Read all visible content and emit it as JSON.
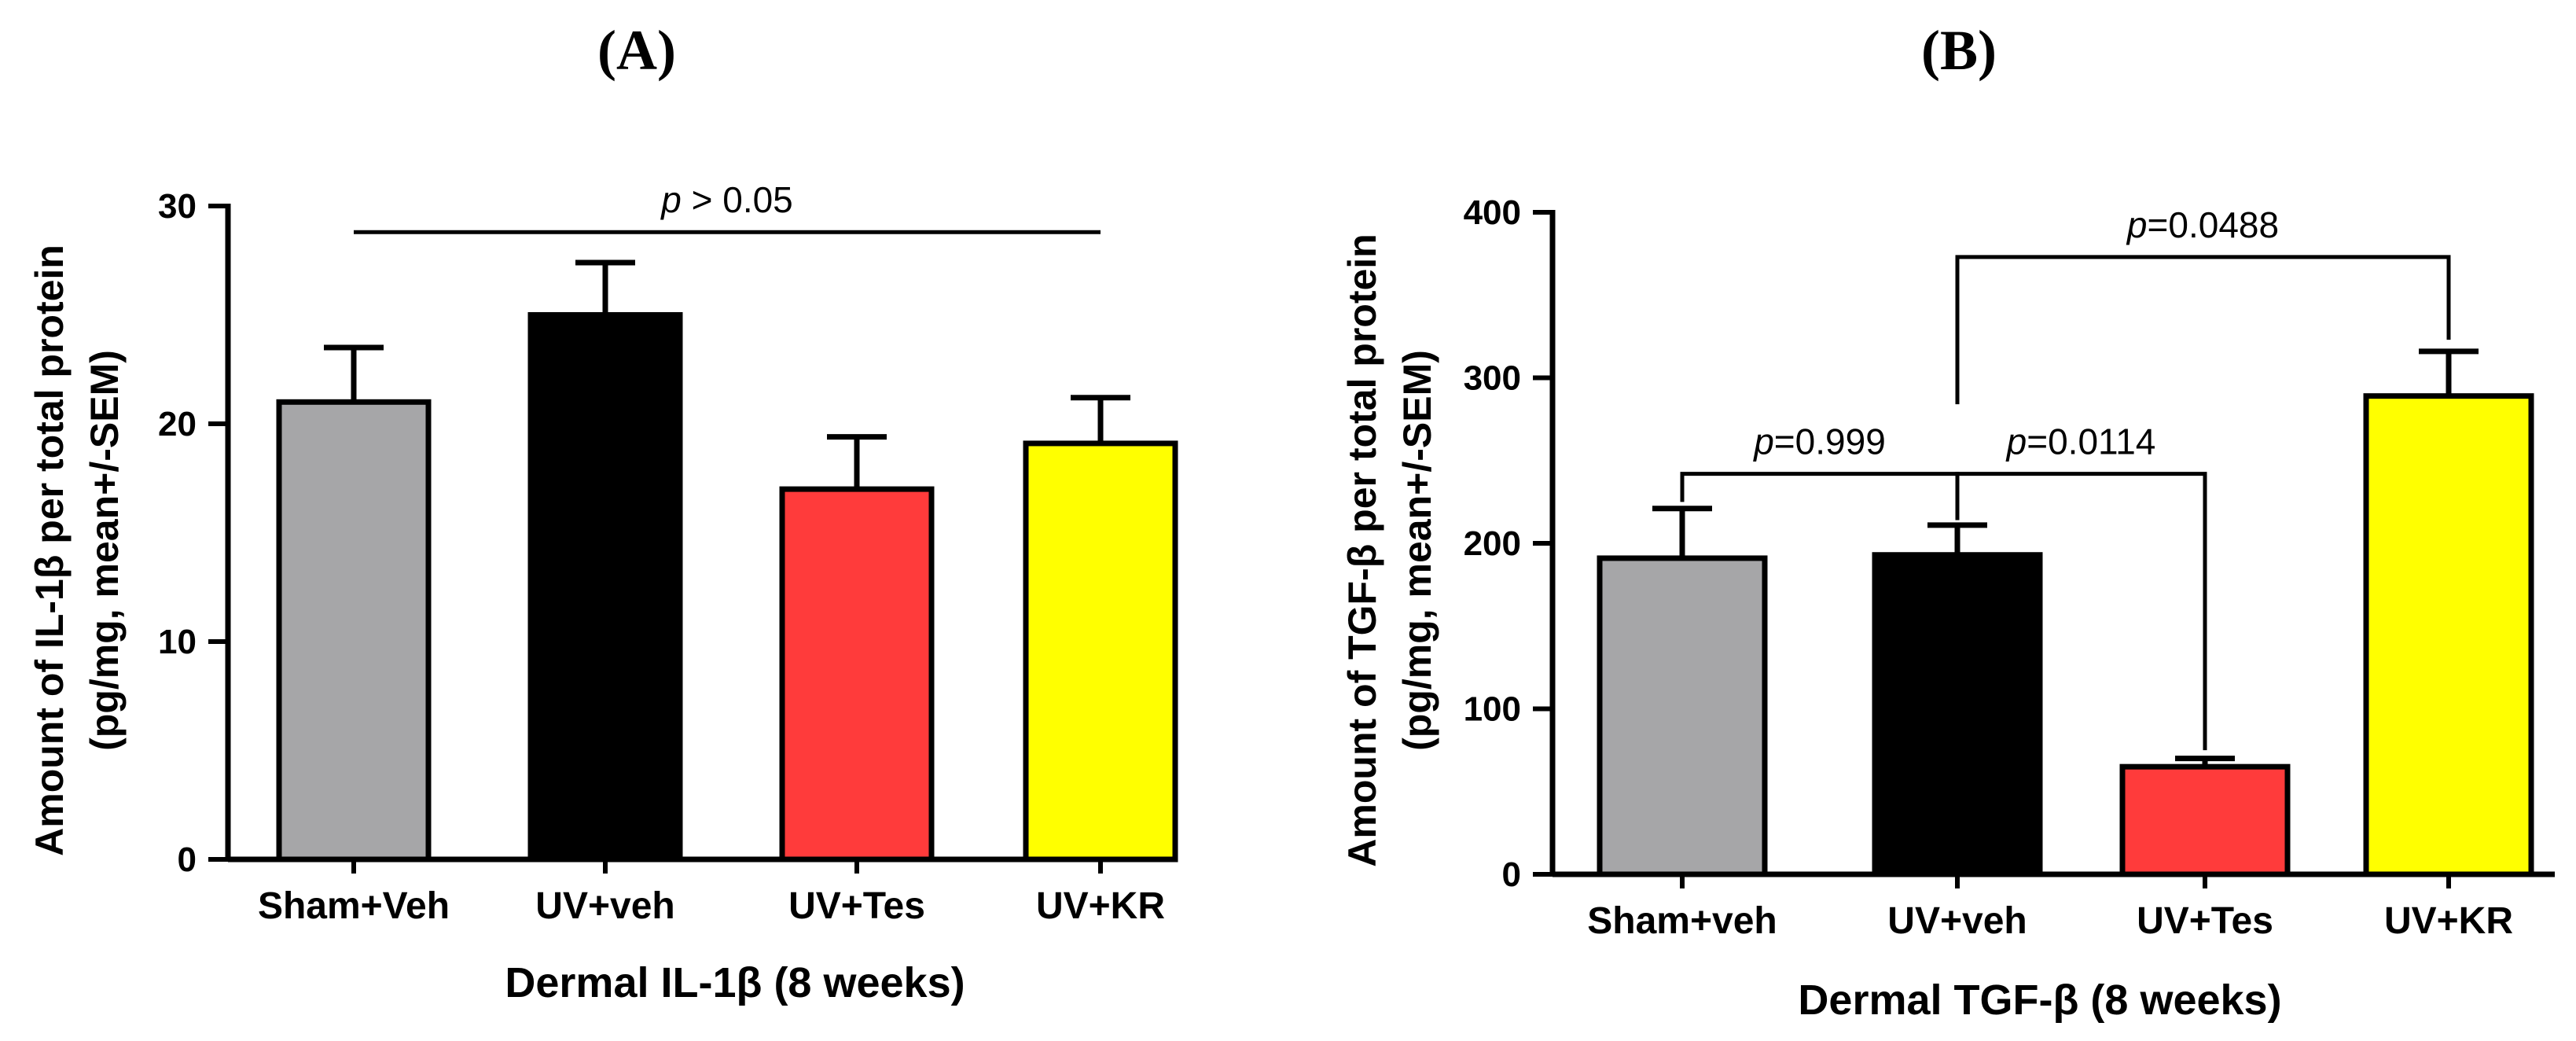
{
  "chart_data": [
    {
      "type": "bar",
      "panel_label": "(A)",
      "categories": [
        "Sham+Veh",
        "UV+veh",
        "UV+Tes",
        "UV+KR"
      ],
      "values": [
        21,
        25,
        17,
        19.1
      ],
      "errors": [
        2.5,
        2.4,
        2.4,
        2.1
      ],
      "colors": [
        "#a6a6a8",
        "#000000",
        "#ff3b3b",
        "#ffff00"
      ],
      "xlabel": "Dermal IL-1β (8 weeks)",
      "ylabel_line1": "Amount of IL-1β per total protein",
      "ylabel_line2": "(pg/mg, mean+/-SEM)",
      "ylim": [
        0,
        30
      ],
      "yticks": [
        0,
        10,
        20,
        30
      ],
      "grid": false,
      "annotations": [
        {
          "italic": "p",
          "text": " > 0.05",
          "from_index": 0,
          "to_index": 3,
          "style": "line",
          "y": 28.8
        }
      ]
    },
    {
      "type": "bar",
      "panel_label": "(B)",
      "categories": [
        "Sham+veh",
        "UV+veh",
        "UV+Tes",
        "UV+KR"
      ],
      "values": [
        191,
        193,
        65,
        289
      ],
      "errors": [
        30,
        18,
        5,
        27
      ],
      "colors": [
        "#a6a6a8",
        "#000000",
        "#ff3b3b",
        "#ffff00"
      ],
      "xlabel": "Dermal TGF-β (8 weeks)",
      "ylabel_line1": "Amount of TGF-β per total protein",
      "ylabel_line2": "(pg/mg, mean+/-SEM)",
      "ylim": [
        0,
        400
      ],
      "yticks": [
        0,
        100,
        200,
        300,
        400
      ],
      "grid": false,
      "annotations": [
        {
          "italic": "p",
          "text": "=0.999",
          "from_index": 0,
          "to_index": 1,
          "style": "bracket",
          "y": 242,
          "drop_to": [
            225,
            214
          ]
        },
        {
          "italic": "p",
          "text": "=0.0114",
          "from_index": 1,
          "to_index": 2,
          "style": "bracket",
          "y": 242,
          "drop_to": [
            214,
            75
          ]
        },
        {
          "italic": "p",
          "text": "=0.0488",
          "from_index": 1,
          "to_index": 3,
          "style": "bracket",
          "y": 373,
          "drop_to": [
            284,
            323
          ]
        }
      ]
    }
  ]
}
